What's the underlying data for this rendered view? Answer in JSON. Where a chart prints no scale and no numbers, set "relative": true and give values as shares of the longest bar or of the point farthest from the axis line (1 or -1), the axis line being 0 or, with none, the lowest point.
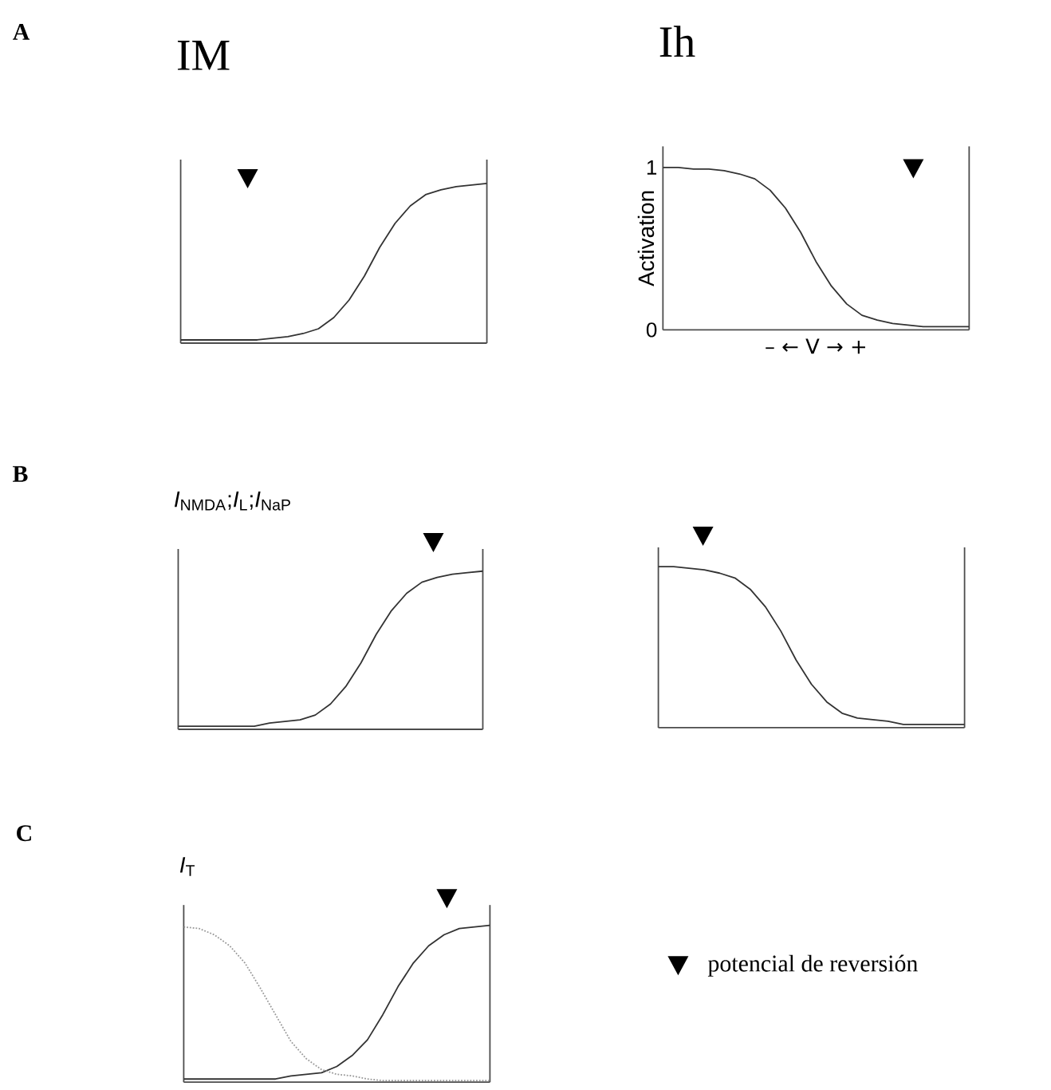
{
  "chart_data": [
    {
      "type": "line",
      "title": "IM",
      "annotations": [
        "A"
      ],
      "relative": true,
      "tick_labels": false,
      "categories": [
        null,
        null,
        null,
        null,
        null,
        null,
        null,
        null,
        null,
        null,
        null,
        null,
        null,
        null,
        null,
        null,
        null,
        null,
        null,
        null,
        null
      ],
      "series": [
        {
          "color": "#333333",
          "values": [
            0.02,
            0.02,
            0.02,
            0.02,
            0.02,
            0.02,
            0.03,
            0.04,
            0.06,
            0.09,
            0.16,
            0.27,
            0.42,
            0.6,
            0.75,
            0.86,
            0.93,
            0.96,
            0.98,
            0.99,
            1.0
          ]
        }
      ]
    },
    {
      "type": "line",
      "title": "Ih",
      "ylabel": "Activation",
      "xlabel": "– ← V → +",
      "ylim": [
        0,
        1.13
      ],
      "yticks": [
        0,
        1
      ],
      "tick_labels": "y",
      "categories": [
        null,
        null,
        null,
        null,
        null,
        null,
        null,
        null,
        null,
        null,
        null,
        null,
        null,
        null,
        null,
        null,
        null,
        null,
        null,
        null,
        null
      ],
      "series": [
        {
          "color": "#333333",
          "values": [
            1.0,
            1.0,
            0.99,
            0.99,
            0.98,
            0.96,
            0.93,
            0.86,
            0.75,
            0.6,
            0.42,
            0.27,
            0.16,
            0.09,
            0.06,
            0.04,
            0.03,
            0.02,
            0.02,
            0.02,
            0.02
          ]
        }
      ]
    },
    {
      "type": "line",
      "title": "*I*$_{NMDA}$;*I*$_{L}$;*I*$_{NaP}$",
      "annotations": [
        "B"
      ],
      "relative": true,
      "tick_labels": false,
      "categories": [
        null,
        null,
        null,
        null,
        null,
        null,
        null,
        null,
        null,
        null,
        null,
        null,
        null,
        null,
        null,
        null,
        null,
        null,
        null,
        null,
        null
      ],
      "series": [
        {
          "color": "#333333",
          "values": [
            0.02,
            0.02,
            0.02,
            0.02,
            0.02,
            0.02,
            0.04,
            0.05,
            0.06,
            0.09,
            0.16,
            0.27,
            0.42,
            0.6,
            0.75,
            0.86,
            0.93,
            0.96,
            0.98,
            0.99,
            1.0
          ]
        }
      ]
    },
    {
      "type": "line",
      "relative": true,
      "tick_labels": false,
      "categories": [
        null,
        null,
        null,
        null,
        null,
        null,
        null,
        null,
        null,
        null,
        null,
        null,
        null,
        null,
        null,
        null,
        null,
        null,
        null,
        null,
        null
      ],
      "series": [
        {
          "color": "#333333",
          "values": [
            1.0,
            1.0,
            0.99,
            0.98,
            0.96,
            0.93,
            0.86,
            0.75,
            0.6,
            0.42,
            0.27,
            0.16,
            0.09,
            0.06,
            0.05,
            0.04,
            0.02,
            0.02,
            0.02,
            0.02,
            0.02
          ]
        }
      ]
    },
    {
      "type": "line",
      "title": "*I*$_{T}$",
      "annotations": [
        "C",
        "potencial de reversión"
      ],
      "relative": true,
      "tick_labels": false,
      "categories": [
        null,
        null,
        null,
        null,
        null,
        null,
        null,
        null,
        null,
        null,
        null,
        null,
        null,
        null,
        null,
        null,
        null,
        null,
        null,
        null,
        null
      ],
      "series": [
        {
          "color": "#333333",
          "values": [
            0.02,
            0.02,
            0.02,
            0.02,
            0.02,
            0.02,
            0.02,
            0.04,
            0.05,
            0.06,
            0.1,
            0.17,
            0.27,
            0.43,
            0.61,
            0.76,
            0.87,
            0.94,
            0.98,
            0.99,
            1.0
          ]
        },
        {
          "color": "#999999",
          "line_style": "dotted",
          "values": [
            0.99,
            0.98,
            0.94,
            0.87,
            0.76,
            0.6,
            0.43,
            0.26,
            0.15,
            0.08,
            0.05,
            0.04,
            0.02,
            0.01,
            0.01,
            0.01,
            0.01,
            0.01,
            0.01,
            0.01,
            0.01
          ]
        }
      ]
    }
  ]
}
